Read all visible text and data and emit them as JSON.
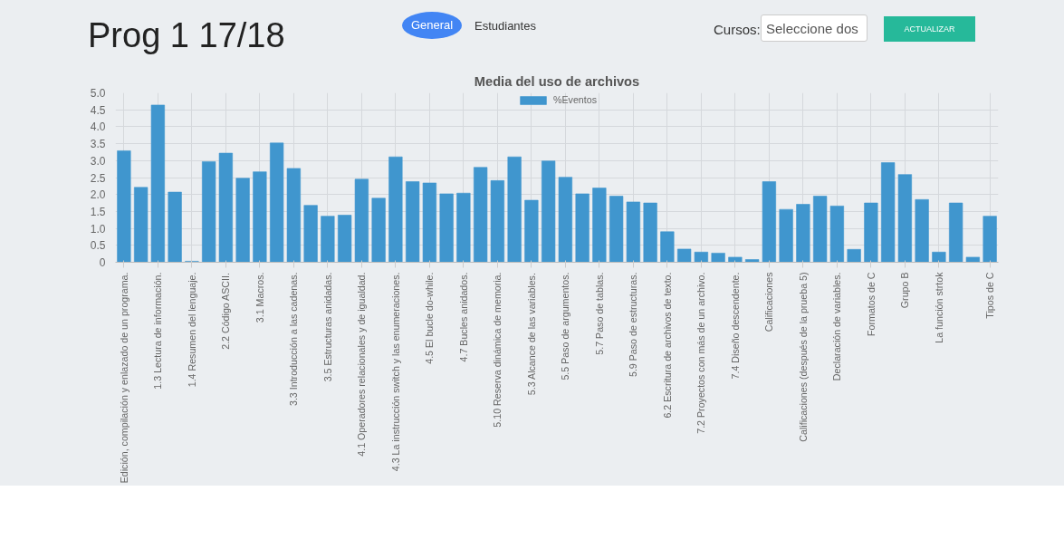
{
  "chart_data": {
    "type": "bar",
    "title": "Media del uso de archivos",
    "annotations": [
      "Prog 1 17/18",
      "General",
      "Estudiantes",
      "Cursos:",
      "Seleccione dos",
      "ACTUALIZAR"
    ],
    "categories": [
      "Edición, compilación y enlazado de un programa.",
      null,
      "1.3 Lectura de información.",
      null,
      "1.4 Resumen del lenguaje.",
      null,
      "2.2 Código ASCII.",
      null,
      "3.1 Macros.",
      null,
      "3.3 Introducción a las cadenas.",
      null,
      "3.5 Estructuras anidadas.",
      null,
      "4.1 Operadores relacionales y de igualdad.",
      null,
      "4.3 La instrucción switch y las enumeraciones.",
      null,
      "4.5 El bucle do-while.",
      null,
      "4.7 Bucles anidados.",
      null,
      "5.10 Reserva dinámica de memoria.",
      null,
      "5.3 Alcance de las variables.",
      null,
      "5.5 Paso de argumentos.",
      null,
      "5.7 Paso de tablas.",
      null,
      "5.9 Paso de estructuras.",
      null,
      "6.2 Escritura de archivos de texto.",
      null,
      "7.2 Proyectos con más de un archivo.",
      null,
      "7.4 Diseño descendente.",
      null,
      "Calificaciones",
      null,
      "Calificaciones (después de la prueba 5)",
      null,
      "Declaración de variables.",
      null,
      "Formatos de C",
      null,
      "Grupo B",
      null,
      "La función strtok",
      null,
      null,
      "Tipos de C"
    ],
    "series": [
      {
        "name": "%Eventos",
        "color": "#4096ce",
        "values": [
          3.29,
          2.21,
          4.64,
          2.07,
          0.03,
          2.97,
          3.22,
          2.48,
          2.67,
          3.52,
          2.77,
          1.68,
          1.36,
          1.39,
          2.45,
          1.89,
          3.11,
          2.38,
          2.34,
          2.02,
          2.04,
          2.8,
          2.41,
          3.11,
          1.83,
          2.99,
          2.51,
          2.02,
          2.19,
          1.95,
          1.78,
          1.75,
          0.9,
          0.39,
          0.3,
          0.27,
          0.15,
          0.08,
          2.38,
          1.56,
          1.71,
          1.95,
          1.66,
          0.38,
          1.75,
          2.94,
          2.59,
          1.85,
          0.3,
          1.75,
          0.15,
          1.36
        ]
      }
    ],
    "ylim": [
      0,
      5
    ],
    "yticks": [
      {
        "value": 0,
        "label": "0"
      },
      {
        "value": 0.5,
        "label": "0.5"
      },
      {
        "value": 1,
        "label": "1.0"
      },
      {
        "value": 1.5,
        "label": "1.5"
      },
      {
        "value": 2,
        "label": "2.0"
      },
      {
        "value": 2.5,
        "label": "2.5"
      },
      {
        "value": 3,
        "label": "3.0"
      },
      {
        "value": 3.5,
        "label": "3.5"
      },
      {
        "value": 4,
        "label": "4.0"
      },
      {
        "value": 4.5,
        "label": "4.5"
      },
      {
        "value": 5,
        "label": "5.0"
      }
    ],
    "grid": true,
    "legend": "top"
  }
}
